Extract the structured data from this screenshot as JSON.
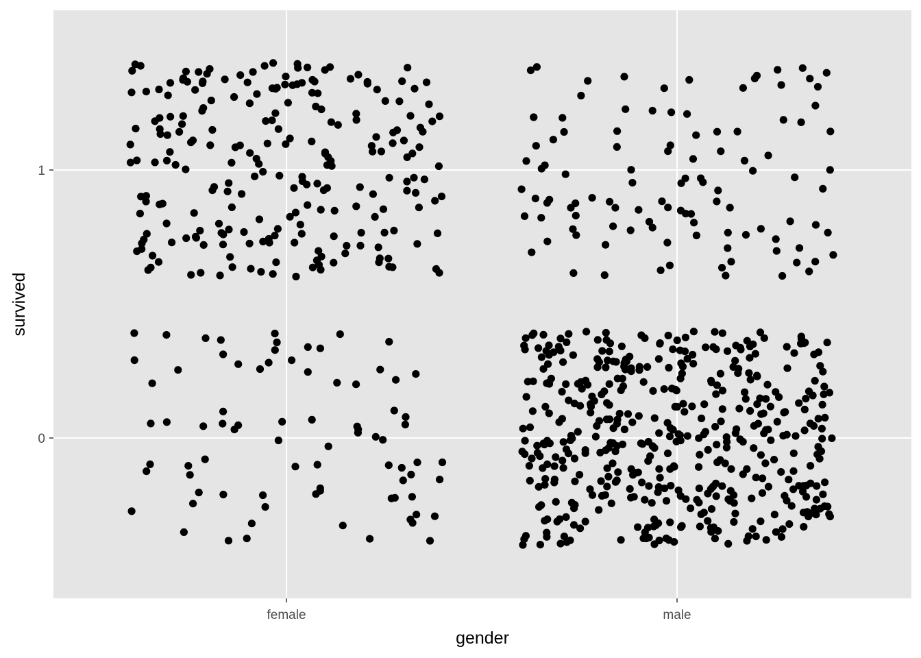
{
  "chart_data": {
    "type": "scatter",
    "title": "",
    "xlabel": "gender",
    "ylabel": "survived",
    "x_categories": [
      "female",
      "male"
    ],
    "y_ticks": [
      0,
      1
    ],
    "y_tick_labels": [
      "0",
      "1"
    ],
    "ylim": [
      -0.6,
      1.6
    ],
    "jitter": {
      "x": 0.4,
      "y": 0.4
    },
    "grid": true,
    "legend": "none",
    "colors": {
      "panel": "#e5e5e5",
      "grid": "#ffffff",
      "point": "#000000"
    },
    "groups": [
      {
        "x": "female",
        "y": 1,
        "count": 233
      },
      {
        "x": "female",
        "y": 0,
        "count": 81
      },
      {
        "x": "male",
        "y": 1,
        "count": 109
      },
      {
        "x": "male",
        "y": 0,
        "count": 468
      }
    ]
  }
}
